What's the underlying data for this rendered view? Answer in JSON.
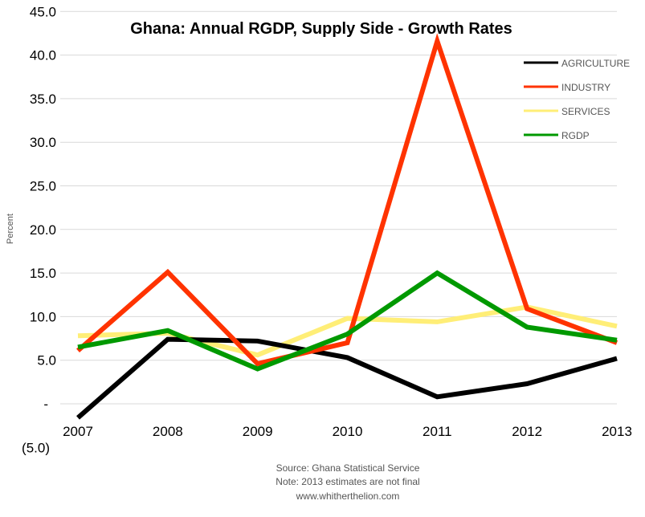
{
  "chart_data": {
    "type": "line",
    "title": "Ghana: Annual RGDP, Supply Side - Growth Rates",
    "ylabel": "Percent",
    "xlabel": "",
    "x": [
      "2007",
      "2008",
      "2009",
      "2010",
      "2011",
      "2012",
      "2013"
    ],
    "ylim": [
      -5,
      45
    ],
    "yticks": [
      45,
      40,
      35,
      30,
      25,
      20,
      15,
      10,
      5,
      0,
      -5
    ],
    "ytick_labels": [
      "45.0",
      "40.0",
      "35.0",
      "30.0",
      "25.0",
      "20.0",
      "15.0",
      "10.0",
      "5.0",
      "-",
      "(5.0)"
    ],
    "grid": true,
    "legend_position": "right",
    "series": [
      {
        "name": "AGRICULTURE",
        "color": "#000000",
        "values": [
          -1.6,
          7.4,
          7.2,
          5.3,
          0.8,
          2.3,
          5.2
        ]
      },
      {
        "name": "INDUSTRY",
        "color": "#ff3300",
        "values": [
          6.1,
          15.1,
          4.6,
          7.0,
          41.6,
          10.9,
          7.0
        ]
      },
      {
        "name": "SERVICES",
        "color": "#ffee77",
        "values": [
          7.8,
          8.1,
          5.6,
          9.8,
          9.4,
          11.1,
          8.9
        ]
      },
      {
        "name": "RGDP",
        "color": "#009900",
        "values": [
          6.5,
          8.4,
          4.0,
          8.0,
          15.0,
          8.8,
          7.3
        ]
      }
    ]
  },
  "footer": {
    "source": "Source: Ghana Statistical Service",
    "note": "Note: 2013 estimates are not final",
    "website": "www.whitherthelion.com"
  }
}
